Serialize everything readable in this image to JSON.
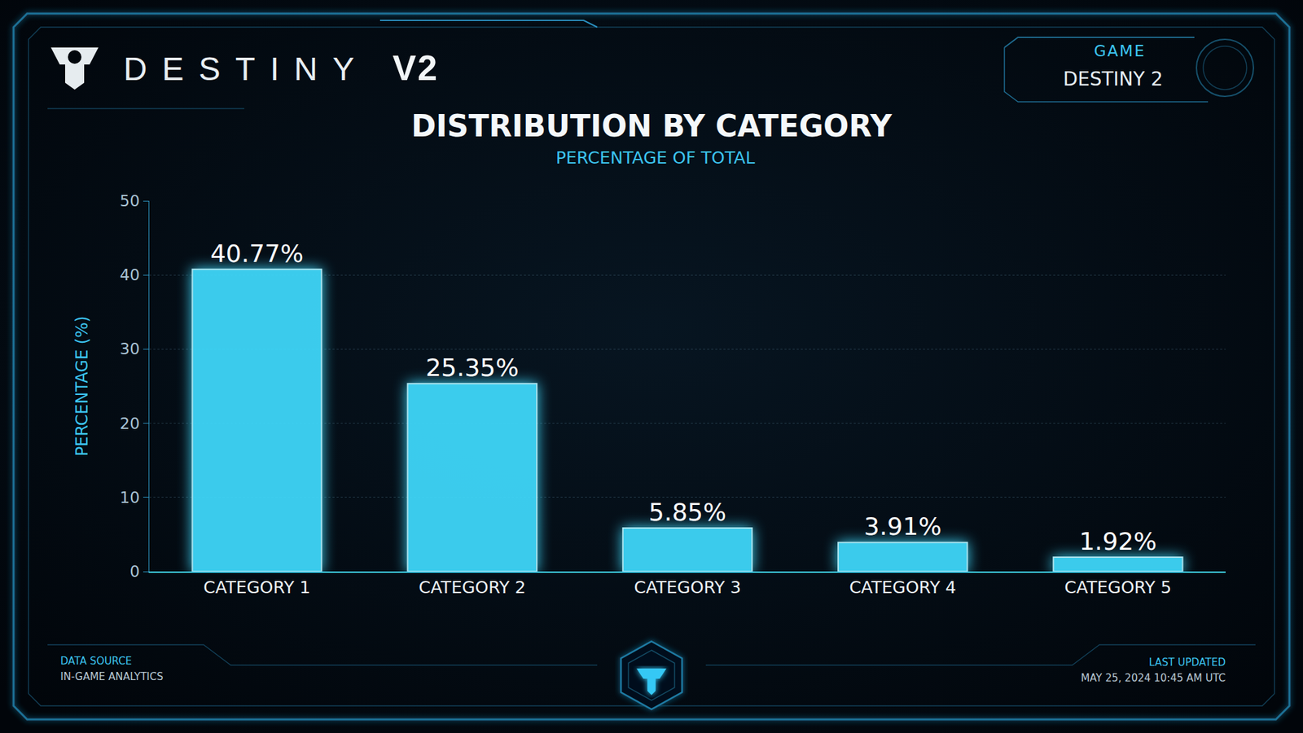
{
  "header": {
    "brand": "DESTINY",
    "version": "V2",
    "game_label": "GAME",
    "game_name": "DESTINY 2"
  },
  "chart_data": {
    "type": "bar",
    "title": "DISTRIBUTION BY CATEGORY",
    "subtitle": "PERCENTAGE OF TOTAL",
    "y_label": "PERCENTAGE (%)",
    "categories": [
      "CATEGORY 1",
      "CATEGORY 2",
      "CATEGORY 3",
      "CATEGORY 4",
      "CATEGORY 5"
    ],
    "values": [
      40.77,
      25.35,
      5.85,
      3.91,
      1.92
    ],
    "value_labels": [
      "40.77%",
      "25.35%",
      "5.85%",
      "3.91%",
      "1.92%"
    ],
    "data_labels": true,
    "color": "#40dcff",
    "ylim": [
      0,
      50
    ],
    "yticks": [
      0,
      10,
      20,
      30,
      40,
      50
    ],
    "grid": true
  },
  "footer": {
    "source_label": "DATA SOURCE",
    "source": "IN-GAME ANALYTICS",
    "updated_label": "LAST UPDATED",
    "updated": "MAY 25, 2024  10:45 AM UTC"
  }
}
